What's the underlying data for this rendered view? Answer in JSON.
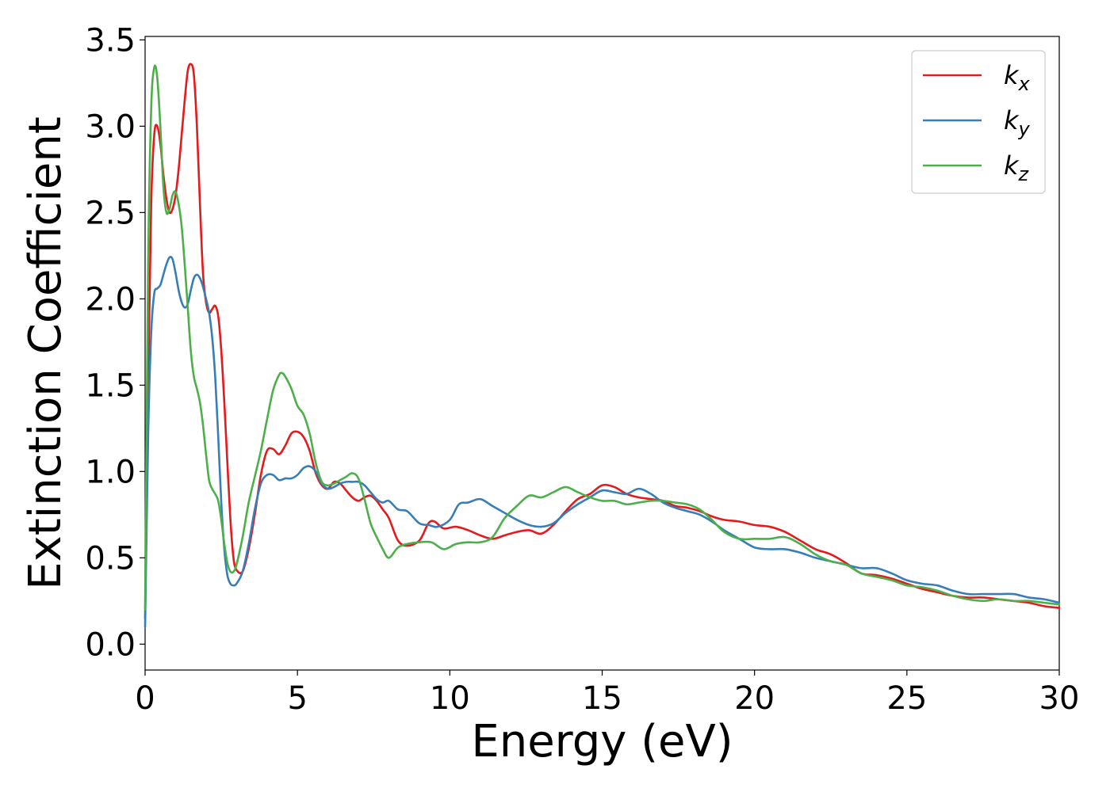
{
  "chart_data": {
    "type": "line",
    "title": "",
    "xlabel": "Energy (eV)",
    "ylabel": "Extinction Coefficient",
    "xlim": [
      0,
      30
    ],
    "ylim": [
      -0.15,
      3.52
    ],
    "x_ticks": [
      0,
      5,
      10,
      15,
      20,
      25,
      30
    ],
    "y_ticks": [
      "0.0",
      "0.5",
      "1.0",
      "1.5",
      "2.0",
      "2.5",
      "3.0",
      "3.5"
    ],
    "grid": false,
    "legend_position": "top-right",
    "series": [
      {
        "name": "k",
        "subscript": "x",
        "color": "#e41a1c",
        "x": [
          0,
          0.1,
          0.2,
          0.3,
          0.4,
          0.5,
          0.6,
          0.7,
          0.8,
          0.9,
          1.0,
          1.1,
          1.2,
          1.3,
          1.4,
          1.5,
          1.6,
          1.7,
          1.8,
          1.9,
          2.0,
          2.1,
          2.2,
          2.3,
          2.4,
          2.5,
          2.6,
          2.7,
          2.8,
          2.9,
          3.0,
          3.2,
          3.4,
          3.6,
          3.8,
          4.0,
          4.2,
          4.4,
          4.6,
          4.8,
          5.0,
          5.2,
          5.4,
          5.6,
          5.8,
          6.0,
          6.2,
          6.4,
          6.6,
          6.8,
          7.0,
          7.2,
          7.4,
          7.6,
          7.8,
          8.0,
          8.3,
          8.6,
          9.0,
          9.3,
          9.5,
          9.8,
          10.2,
          10.6,
          11.0,
          11.4,
          11.8,
          12.2,
          12.6,
          13.0,
          13.4,
          13.8,
          14.2,
          14.6,
          15.0,
          15.4,
          15.8,
          16.2,
          16.6,
          17.0,
          17.4,
          17.8,
          18.2,
          18.6,
          19.0,
          19.5,
          20.0,
          20.5,
          21.0,
          21.5,
          22.0,
          22.5,
          23.0,
          23.5,
          24.0,
          24.5,
          25.0,
          25.5,
          26.0,
          26.5,
          27.0,
          27.5,
          28.0,
          28.5,
          29.0,
          29.5,
          30.0
        ],
        "y": [
          0.15,
          1.5,
          2.55,
          2.95,
          3.0,
          2.9,
          2.72,
          2.58,
          2.5,
          2.52,
          2.6,
          2.75,
          2.95,
          3.15,
          3.32,
          3.36,
          3.3,
          3.0,
          2.55,
          2.15,
          1.98,
          1.92,
          1.94,
          1.96,
          1.9,
          1.7,
          1.4,
          1.05,
          0.72,
          0.5,
          0.43,
          0.42,
          0.55,
          0.75,
          0.98,
          1.12,
          1.13,
          1.1,
          1.15,
          1.22,
          1.23,
          1.2,
          1.12,
          0.99,
          0.92,
          0.9,
          0.94,
          0.93,
          0.89,
          0.85,
          0.83,
          0.85,
          0.86,
          0.83,
          0.78,
          0.73,
          0.6,
          0.57,
          0.6,
          0.7,
          0.71,
          0.67,
          0.68,
          0.66,
          0.63,
          0.61,
          0.63,
          0.65,
          0.66,
          0.64,
          0.69,
          0.77,
          0.84,
          0.87,
          0.92,
          0.91,
          0.87,
          0.85,
          0.84,
          0.83,
          0.8,
          0.79,
          0.77,
          0.74,
          0.72,
          0.71,
          0.69,
          0.68,
          0.65,
          0.6,
          0.55,
          0.52,
          0.47,
          0.41,
          0.4,
          0.38,
          0.35,
          0.32,
          0.3,
          0.28,
          0.27,
          0.27,
          0.26,
          0.25,
          0.24,
          0.22,
          0.21
        ]
      },
      {
        "name": "k",
        "subscript": "y",
        "color": "#377eb8",
        "x": [
          0,
          0.1,
          0.2,
          0.3,
          0.4,
          0.5,
          0.6,
          0.7,
          0.8,
          0.9,
          1.0,
          1.1,
          1.2,
          1.3,
          1.4,
          1.5,
          1.6,
          1.7,
          1.8,
          1.9,
          2.0,
          2.1,
          2.2,
          2.3,
          2.4,
          2.5,
          2.6,
          2.7,
          2.8,
          2.9,
          3.0,
          3.2,
          3.4,
          3.6,
          3.8,
          4.0,
          4.2,
          4.4,
          4.6,
          4.8,
          5.0,
          5.2,
          5.4,
          5.6,
          5.8,
          6.0,
          6.2,
          6.4,
          6.6,
          6.8,
          7.0,
          7.2,
          7.4,
          7.6,
          7.8,
          8.0,
          8.3,
          8.6,
          9.0,
          9.3,
          9.6,
          10.0,
          10.3,
          10.6,
          11.0,
          11.4,
          11.8,
          12.2,
          12.6,
          13.0,
          13.4,
          13.8,
          14.2,
          14.6,
          15.0,
          15.4,
          15.8,
          16.2,
          16.6,
          17.0,
          17.4,
          17.8,
          18.2,
          18.6,
          19.0,
          19.5,
          20.0,
          20.5,
          21.0,
          21.5,
          22.0,
          22.5,
          23.0,
          23.5,
          24.0,
          24.5,
          25.0,
          25.5,
          26.0,
          26.5,
          27.0,
          27.5,
          28.0,
          28.5,
          29.0,
          29.5,
          30.0
        ],
        "y": [
          0.1,
          1.2,
          1.8,
          2.03,
          2.06,
          2.08,
          2.14,
          2.2,
          2.24,
          2.23,
          2.15,
          2.05,
          1.98,
          1.95,
          1.97,
          2.05,
          2.12,
          2.14,
          2.12,
          2.07,
          2.0,
          1.92,
          1.78,
          1.55,
          1.2,
          0.82,
          0.55,
          0.4,
          0.35,
          0.34,
          0.35,
          0.42,
          0.58,
          0.78,
          0.93,
          0.98,
          0.98,
          0.95,
          0.96,
          0.96,
          0.98,
          1.02,
          1.03,
          1.0,
          0.93,
          0.9,
          0.91,
          0.93,
          0.94,
          0.94,
          0.94,
          0.92,
          0.88,
          0.84,
          0.82,
          0.83,
          0.78,
          0.77,
          0.7,
          0.69,
          0.68,
          0.72,
          0.81,
          0.82,
          0.84,
          0.8,
          0.76,
          0.72,
          0.69,
          0.68,
          0.7,
          0.76,
          0.81,
          0.85,
          0.89,
          0.88,
          0.87,
          0.9,
          0.87,
          0.82,
          0.79,
          0.77,
          0.75,
          0.71,
          0.66,
          0.61,
          0.56,
          0.55,
          0.55,
          0.53,
          0.5,
          0.48,
          0.46,
          0.44,
          0.44,
          0.41,
          0.37,
          0.35,
          0.34,
          0.31,
          0.29,
          0.29,
          0.29,
          0.29,
          0.27,
          0.26,
          0.24
        ]
      },
      {
        "name": "k",
        "subscript": "z",
        "color": "#4daf4a",
        "x": [
          0,
          0.1,
          0.2,
          0.3,
          0.4,
          0.5,
          0.6,
          0.7,
          0.8,
          0.9,
          1.0,
          1.1,
          1.2,
          1.3,
          1.4,
          1.5,
          1.6,
          1.7,
          1.8,
          1.9,
          2.0,
          2.1,
          2.2,
          2.3,
          2.4,
          2.5,
          2.6,
          2.7,
          2.8,
          2.9,
          3.0,
          3.2,
          3.4,
          3.6,
          3.8,
          4.0,
          4.2,
          4.4,
          4.5,
          4.6,
          4.8,
          5.0,
          5.2,
          5.4,
          5.6,
          5.8,
          6.0,
          6.2,
          6.4,
          6.6,
          6.8,
          7.0,
          7.2,
          7.4,
          7.6,
          7.8,
          8.0,
          8.3,
          8.6,
          9.0,
          9.4,
          9.8,
          10.2,
          10.6,
          11.0,
          11.4,
          11.8,
          12.2,
          12.6,
          13.0,
          13.4,
          13.8,
          14.2,
          14.6,
          15.0,
          15.4,
          15.8,
          16.2,
          16.6,
          17.0,
          17.4,
          17.8,
          18.2,
          18.6,
          19.0,
          19.5,
          20.0,
          20.5,
          21.0,
          21.5,
          22.0,
          22.5,
          23.0,
          23.5,
          24.0,
          24.5,
          25.0,
          25.5,
          26.0,
          26.5,
          27.0,
          27.5,
          28.0,
          28.5,
          29.0,
          29.5,
          30.0
        ],
        "y": [
          0.2,
          2.2,
          3.1,
          3.34,
          3.28,
          3.0,
          2.65,
          2.5,
          2.52,
          2.6,
          2.62,
          2.55,
          2.42,
          2.2,
          1.95,
          1.7,
          1.55,
          1.48,
          1.4,
          1.27,
          1.1,
          0.95,
          0.9,
          0.87,
          0.83,
          0.72,
          0.58,
          0.47,
          0.42,
          0.42,
          0.46,
          0.62,
          0.82,
          0.97,
          1.12,
          1.3,
          1.47,
          1.56,
          1.57,
          1.55,
          1.48,
          1.38,
          1.33,
          1.22,
          1.05,
          0.94,
          0.92,
          0.93,
          0.95,
          0.97,
          0.99,
          0.96,
          0.84,
          0.7,
          0.62,
          0.55,
          0.5,
          0.56,
          0.58,
          0.59,
          0.59,
          0.55,
          0.58,
          0.59,
          0.59,
          0.62,
          0.73,
          0.8,
          0.86,
          0.85,
          0.88,
          0.91,
          0.88,
          0.85,
          0.83,
          0.83,
          0.81,
          0.82,
          0.83,
          0.83,
          0.82,
          0.81,
          0.78,
          0.72,
          0.65,
          0.61,
          0.61,
          0.61,
          0.62,
          0.58,
          0.52,
          0.48,
          0.46,
          0.41,
          0.39,
          0.37,
          0.34,
          0.33,
          0.31,
          0.28,
          0.26,
          0.25,
          0.26,
          0.25,
          0.25,
          0.24,
          0.23
        ]
      }
    ]
  }
}
